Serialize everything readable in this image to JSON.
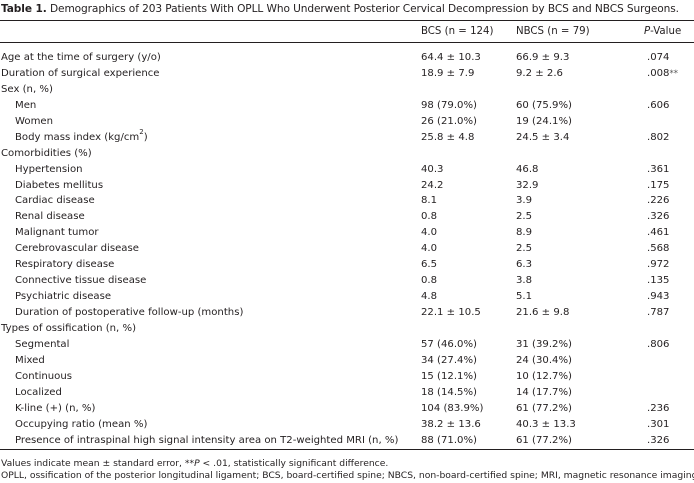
{
  "table": {
    "caption_label": "Table 1.",
    "caption_text": " Demographics of 203 Patients With OPLL Who Underwent Posterior Cervical Decompression by BCS and NBCS Surgeons.",
    "headers": {
      "bcs": "BCS (n = 124)",
      "nbcs": "NBCS (n = 79)",
      "p_italic": "P",
      "p_rest": "-Value"
    },
    "rows": [
      {
        "label": "Age at the time of surgery (y/o)",
        "bcs": "64.4 ± 10.3",
        "nbcs": "66.9 ± 9.3",
        "p": ".074",
        "sig": ""
      },
      {
        "label": "Duration of surgical experience",
        "bcs": "18.9 ± 7.9",
        "nbcs": "9.2 ± 2.6",
        "p": ".008",
        "sig": "**"
      },
      {
        "label": "Sex (n, %)",
        "bcs": "",
        "nbcs": "",
        "p": "",
        "sig": ""
      },
      {
        "label": "Men",
        "bcs": "98 (79.0%)",
        "nbcs": "60 (75.9%)",
        "p": ".606",
        "sig": ""
      },
      {
        "label": "Women",
        "bcs": "26 (21.0%)",
        "nbcs": "19 (24.1%)",
        "p": "",
        "sig": ""
      },
      {
        "label": "Body mass index (kg/cm",
        "sup": "2",
        "label_end": ")",
        "bcs": "25.8 ± 4.8",
        "nbcs": "24.5 ± 3.4",
        "p": ".802",
        "sig": ""
      },
      {
        "label": "Comorbidities (%)",
        "bcs": "",
        "nbcs": "",
        "p": "",
        "sig": ""
      },
      {
        "label": "Hypertension",
        "bcs": "40.3",
        "nbcs": "46.8",
        "p": ".361",
        "sig": ""
      },
      {
        "label": "Diabetes mellitus",
        "bcs": "24.2",
        "nbcs": "32.9",
        "p": ".175",
        "sig": ""
      },
      {
        "label": "Cardiac disease",
        "bcs": "8.1",
        "nbcs": "3.9",
        "p": ".226",
        "sig": ""
      },
      {
        "label": "Renal disease",
        "bcs": "0.8",
        "nbcs": "2.5",
        "p": ".326",
        "sig": ""
      },
      {
        "label": "Malignant tumor",
        "bcs": "4.0",
        "nbcs": "8.9",
        "p": ".461",
        "sig": ""
      },
      {
        "label": "Cerebrovascular disease",
        "bcs": "4.0",
        "nbcs": "2.5",
        "p": ".568",
        "sig": ""
      },
      {
        "label": "Respiratory disease",
        "bcs": "6.5",
        "nbcs": "6.3",
        "p": ".972",
        "sig": ""
      },
      {
        "label": "Connective tissue disease",
        "bcs": "0.8",
        "nbcs": "3.8",
        "p": ".135",
        "sig": ""
      },
      {
        "label": "Psychiatric disease",
        "bcs": "4.8",
        "nbcs": "5.1",
        "p": ".943",
        "sig": ""
      },
      {
        "label": "Duration of postoperative follow-up (months)",
        "bcs": "22.1 ± 10.5",
        "nbcs": "21.6 ± 9.8",
        "p": ".787",
        "sig": ""
      },
      {
        "label": "Types of ossification (n, %)",
        "bcs": "",
        "nbcs": "",
        "p": "",
        "sig": ""
      },
      {
        "label": "Segmental",
        "bcs": "57 (46.0%)",
        "nbcs": "31 (39.2%)",
        "p": ".806",
        "sig": ""
      },
      {
        "label": "Mixed",
        "bcs": "34 (27.4%)",
        "nbcs": "24 (30.4%)",
        "p": "",
        "sig": ""
      },
      {
        "label": "Continuous",
        "bcs": "15 (12.1%)",
        "nbcs": "10 (12.7%)",
        "p": "",
        "sig": ""
      },
      {
        "label": "Localized",
        "bcs": "18 (14.5%)",
        "nbcs": "14 (17.7%)",
        "p": "",
        "sig": ""
      },
      {
        "label": "K-line (+) (n, %)",
        "bcs": "104 (83.9%)",
        "nbcs": "61 (77.2%)",
        "p": ".236",
        "sig": ""
      },
      {
        "label": "Occupying ratio (mean %)",
        "bcs": "38.2 ± 13.6",
        "nbcs": "40.3 ± 13.3",
        "p": ".301",
        "sig": ""
      },
      {
        "label": "Presence of intraspinal high signal intensity area on T2-weighted MRI (n, %)",
        "bcs": "88 (71.0%)",
        "nbcs": "61 (77.2%)",
        "p": ".326",
        "sig": ""
      }
    ],
    "footnotes": {
      "line1_a": "Values indicate mean ± standard error, **",
      "line1_p": "P",
      "line1_b": " < .01, statistically significant difference.",
      "line2": "OPLL, ossification of the posterior longitudinal ligament; BCS, board-certified spine; NBCS, non-board-certified spine; MRI, magnetic resonance imaging."
    }
  }
}
